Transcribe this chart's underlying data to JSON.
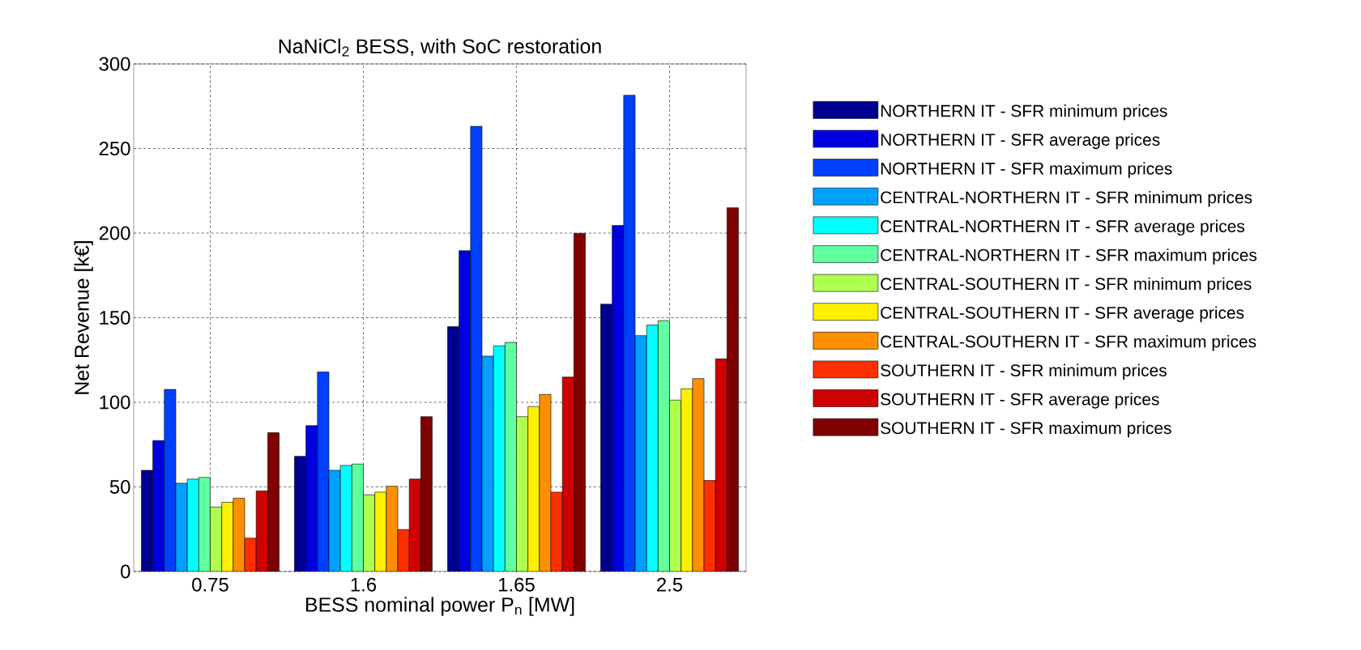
{
  "chart_data": {
    "type": "bar",
    "title": "NaNiCl$_{2}$ BESS, with SoC restoration",
    "xlabel": "BESS nominal power P$_{n}$ [MW]",
    "ylabel": "Net Revenue [k€]",
    "categories": [
      "0.75",
      "1.6",
      "1.65",
      "2.5"
    ],
    "ylim": [
      0,
      300
    ],
    "yticks": [
      0,
      50,
      100,
      150,
      200,
      250,
      300
    ],
    "grid": true,
    "legend": "right",
    "series": [
      {
        "name": "NORTHERN IT - SFR minimum prices",
        "color": "#00008f",
        "values": [
          59.8,
          68.1,
          144.7,
          158.0
        ]
      },
      {
        "name": "NORTHERN IT - SFR average prices",
        "color": "#0000df",
        "values": [
          77.4,
          86.2,
          189.6,
          204.5
        ]
      },
      {
        "name": "NORTHERN IT - SFR maximum prices",
        "color": "#0040ff",
        "values": [
          107.6,
          117.9,
          263.1,
          281.5
        ]
      },
      {
        "name": "CENTRAL-NORTHERN IT - SFR minimum prices",
        "color": "#00a0ff",
        "values": [
          52.2,
          59.8,
          127.3,
          139.4
        ]
      },
      {
        "name": "CENTRAL-NORTHERN IT - SFR average prices",
        "color": "#00ffff",
        "values": [
          54.6,
          62.7,
          133.4,
          145.7
        ]
      },
      {
        "name": "CENTRAL-NORTHERN IT - SFR maximum prices",
        "color": "#60ff9f",
        "values": [
          55.6,
          63.5,
          135.4,
          148.3
        ]
      },
      {
        "name": "CENTRAL-SOUTHERN IT - SFR minimum prices",
        "color": "#afff50",
        "values": [
          38.1,
          45.3,
          91.5,
          101.3
        ]
      },
      {
        "name": "CENTRAL-SOUTHERN IT - SFR average prices",
        "color": "#ffef00",
        "values": [
          40.9,
          46.9,
          97.5,
          108.0
        ]
      },
      {
        "name": "CENTRAL-SOUTHERN IT - SFR maximum prices",
        "color": "#ff8f00",
        "values": [
          43.3,
          50.4,
          104.6,
          114.0
        ]
      },
      {
        "name": "SOUTHERN IT - SFR minimum prices",
        "color": "#ff3000",
        "values": [
          19.7,
          24.8,
          46.9,
          53.8
        ]
      },
      {
        "name": "SOUTHERN IT - SFR average prices",
        "color": "#cf0000",
        "values": [
          47.6,
          54.6,
          114.9,
          125.7
        ]
      },
      {
        "name": "SOUTHERN IT - SFR maximum prices",
        "color": "#800000",
        "values": [
          82.0,
          91.5,
          199.9,
          215.0
        ]
      }
    ]
  }
}
